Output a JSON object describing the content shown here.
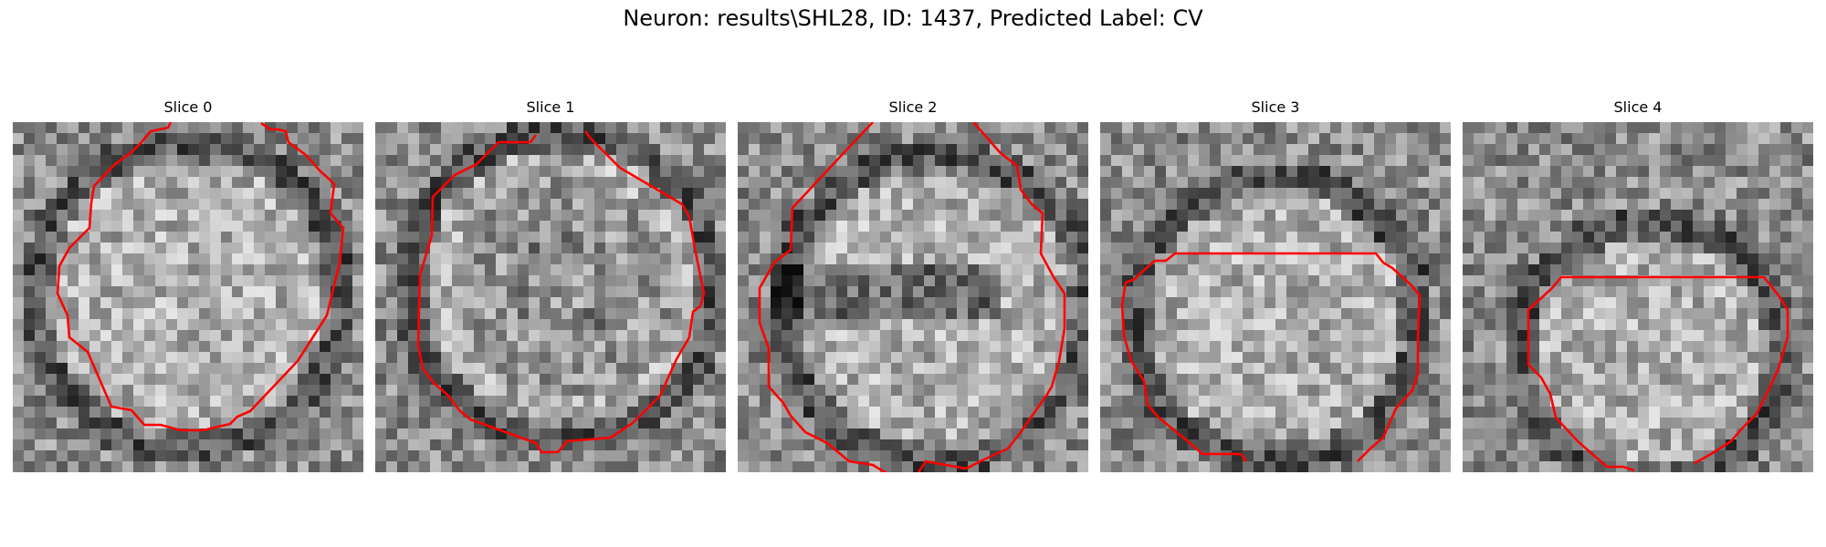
{
  "figure": {
    "title": "Neuron: results\\SHL28, ID: 1437, Predicted Label: CV"
  },
  "panels": [
    {
      "title": "Slice 0",
      "icon": "grayscale-microscopy-image-with-red-contour"
    },
    {
      "title": "Slice 1",
      "icon": "grayscale-microscopy-image-with-red-contour"
    },
    {
      "title": "Slice 2",
      "icon": "grayscale-microscopy-image-with-red-contour"
    },
    {
      "title": "Slice 3",
      "icon": "grayscale-microscopy-image-with-red-contour"
    },
    {
      "title": "Slice 4",
      "icon": "grayscale-microscopy-image-with-red-contour"
    }
  ],
  "colors": {
    "contour": "#ff0000",
    "background": "#ffffff"
  }
}
